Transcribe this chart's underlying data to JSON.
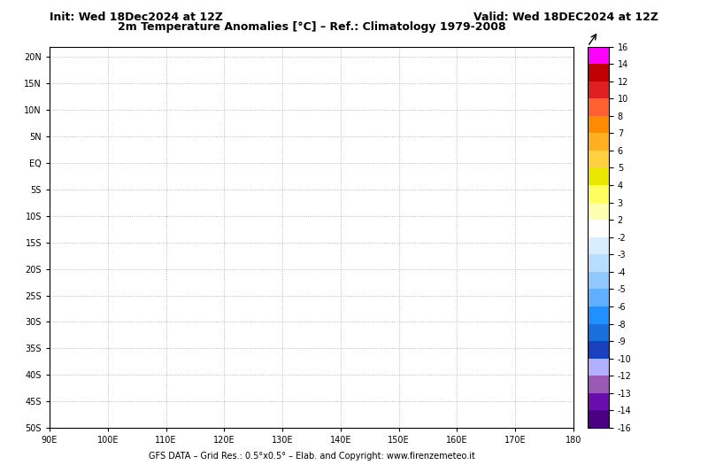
{
  "title_left": "Init: Wed 18Dec2024 at 12Z",
  "title_right": "Valid: Wed 18DEC2024 at 12Z",
  "title_center": "2m Temperature Anomalies [°C] – Ref.: Climatology 1979-2008",
  "footer": "GFS DATA – Grid Res.: 0.5°x0.5° – Elab. and Copyright: www.firenzemeteo.it",
  "lon_min": 90,
  "lon_max": 180,
  "lat_min": -50,
  "lat_max": 22,
  "lon_ticks": [
    90,
    100,
    110,
    120,
    130,
    140,
    150,
    160,
    170,
    180
  ],
  "lat_ticks": [
    -50,
    -45,
    -40,
    -35,
    -30,
    -25,
    -20,
    -15,
    -10,
    -5,
    0,
    5,
    10,
    15,
    20
  ],
  "lon_labels": [
    "90E",
    "100E",
    "110E",
    "120E",
    "130E",
    "140E",
    "150E",
    "160E",
    "170E",
    "180"
  ],
  "lat_labels": [
    "50S",
    "45S",
    "40S",
    "35S",
    "30S",
    "25S",
    "20S",
    "15S",
    "10S",
    "5S",
    "EQ",
    "5N",
    "10N",
    "15N",
    "20N"
  ],
  "colorbar_levels": [
    -16,
    -14,
    -13,
    -12,
    -10,
    -9,
    -8,
    -6,
    -5,
    -4,
    -3,
    -2,
    2,
    3,
    4,
    5,
    6,
    7,
    8,
    10,
    12,
    14,
    16
  ],
  "colorbar_colors": [
    "#4b0082",
    "#6a0dad",
    "#9b30ff",
    "#bf7fff",
    "#1f4fbf",
    "#1a6fdf",
    "#2090ff",
    "#60b0ff",
    "#90c8ff",
    "#b8deff",
    "#d0eaff",
    "#ffffff",
    "#ffffff",
    "#ffffb0",
    "#ffff60",
    "#ffffa0",
    "#ffd040",
    "#ffb020",
    "#ff8c00",
    "#ff6030",
    "#e02020",
    "#c00000",
    "#ff00ff"
  ],
  "background_color": "#ffffff",
  "map_bg": "#ffffff",
  "grid_color": "#aaaaaa",
  "grid_style": "dotted"
}
